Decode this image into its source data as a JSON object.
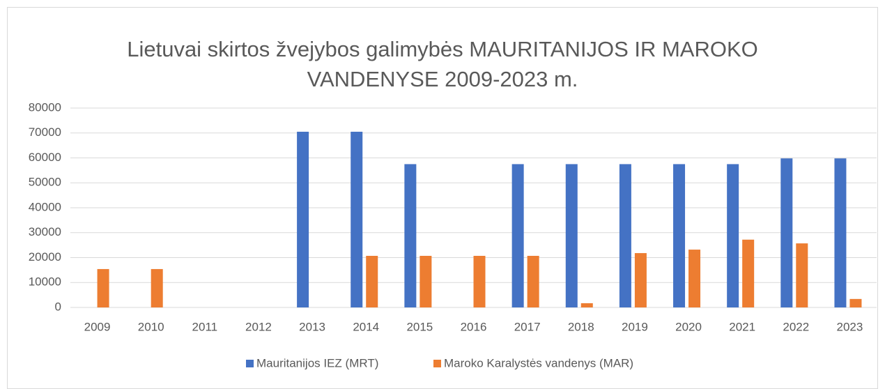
{
  "chart_data": {
    "type": "bar",
    "title": [
      "Lietuvai skirtos žvejybos galimybės MAURITANIJOS IR MAROKO",
      "VANDENYSE 2009-2023 m."
    ],
    "categories": [
      "2009",
      "2010",
      "2011",
      "2012",
      "2013",
      "2014",
      "2015",
      "2016",
      "2017",
      "2018",
      "2019",
      "2020",
      "2021",
      "2022",
      "2023"
    ],
    "series": [
      {
        "name": "Mauritanijos IEZ (MRT)",
        "color": "#4472c4",
        "values": [
          null,
          null,
          null,
          null,
          70500,
          70500,
          57500,
          null,
          57500,
          57500,
          57500,
          57500,
          57500,
          59800,
          59800
        ]
      },
      {
        "name": "Maroko Karalystės vandenys (MAR)",
        "color": "#ed7d31",
        "values": [
          15400,
          15400,
          null,
          null,
          null,
          20700,
          20700,
          20700,
          20700,
          1700,
          21800,
          23200,
          27200,
          25700,
          3400
        ]
      }
    ],
    "ylim": [
      0,
      80000
    ],
    "yticks": [
      0,
      10000,
      20000,
      30000,
      40000,
      50000,
      60000,
      70000,
      80000
    ],
    "grid": true,
    "legend": "bottom"
  }
}
